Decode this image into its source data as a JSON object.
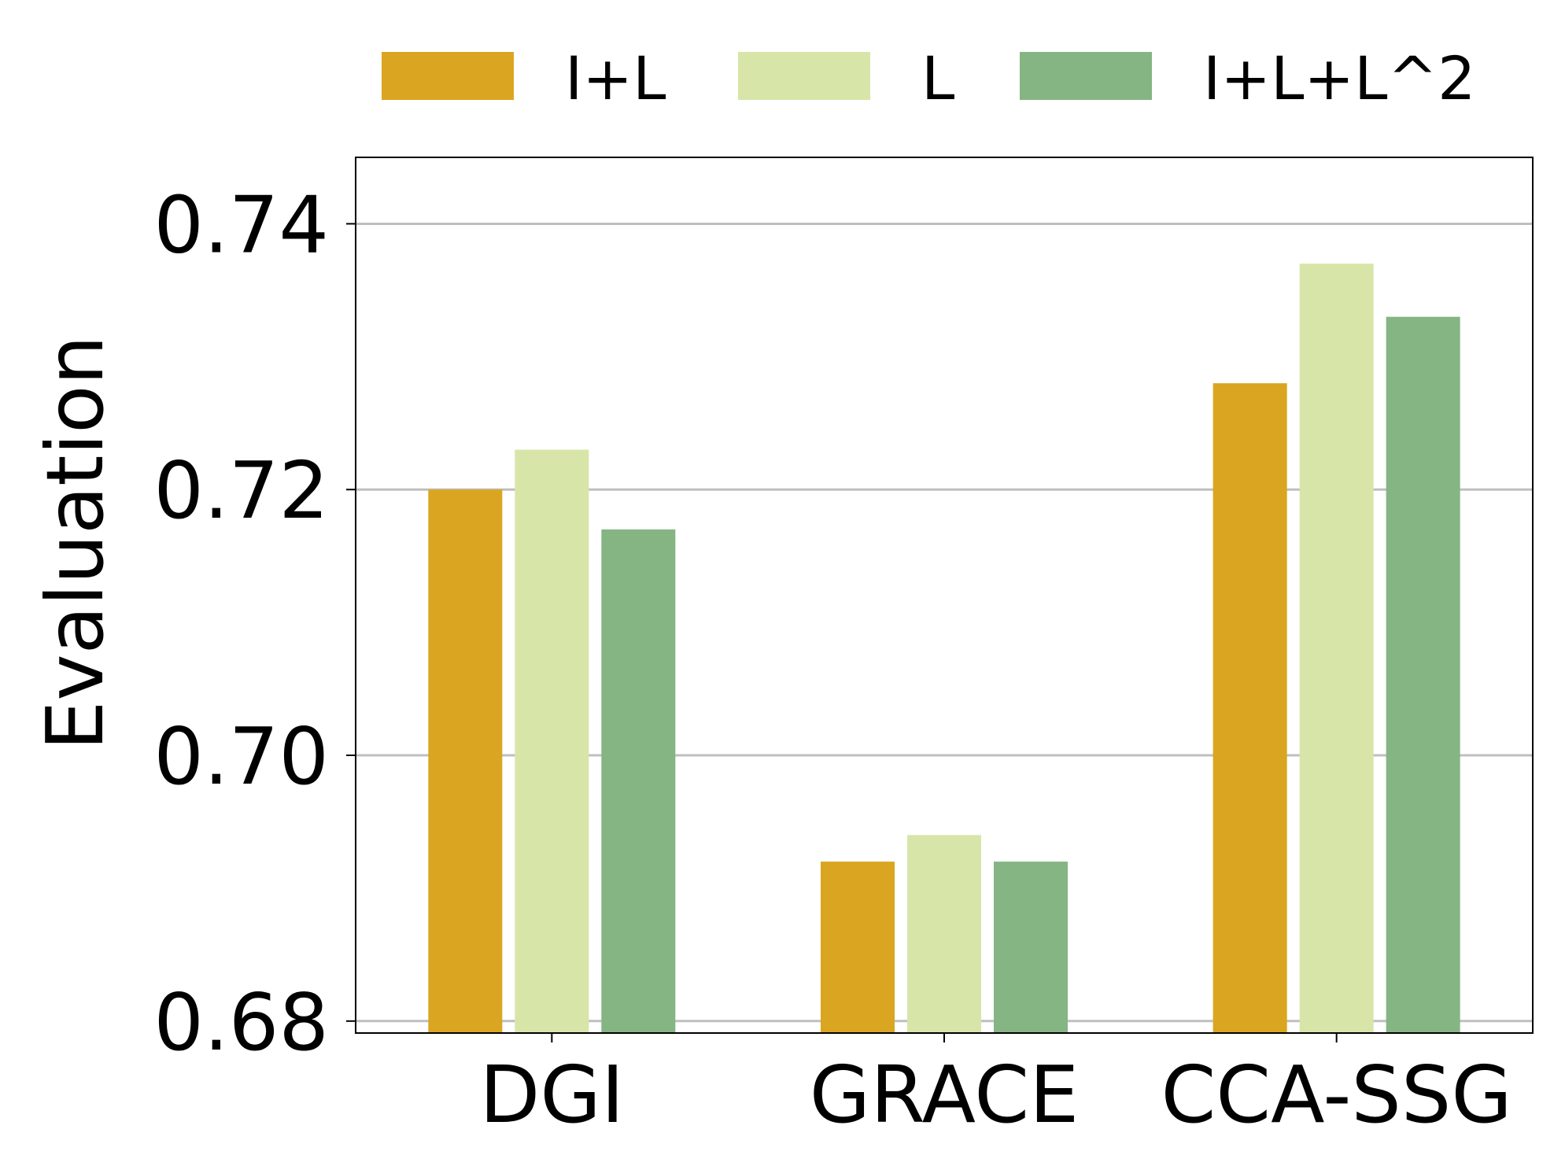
{
  "chart_data": {
    "type": "bar",
    "categories": [
      "DGI",
      "GRACE",
      "CCA-SSG"
    ],
    "series": [
      {
        "name": "I+L",
        "color": "#daa520",
        "values": [
          0.72,
          0.692,
          0.728
        ]
      },
      {
        "name": "L",
        "color": "#d7e5a9",
        "values": [
          0.723,
          0.694,
          0.737
        ]
      },
      {
        "name": "I+L+L^2",
        "color": "#84b583",
        "values": [
          0.717,
          0.692,
          0.733
        ]
      }
    ],
    "xlabel": "",
    "ylabel": "Evaluation",
    "ylim": [
      0.6791,
      0.745
    ],
    "yticks": [
      0.68,
      0.7,
      0.72,
      0.74
    ],
    "ytick_labels": [
      "0.68",
      "0.70",
      "0.72",
      "0.74"
    ],
    "grid": "horizontal",
    "legend_position": "top"
  }
}
